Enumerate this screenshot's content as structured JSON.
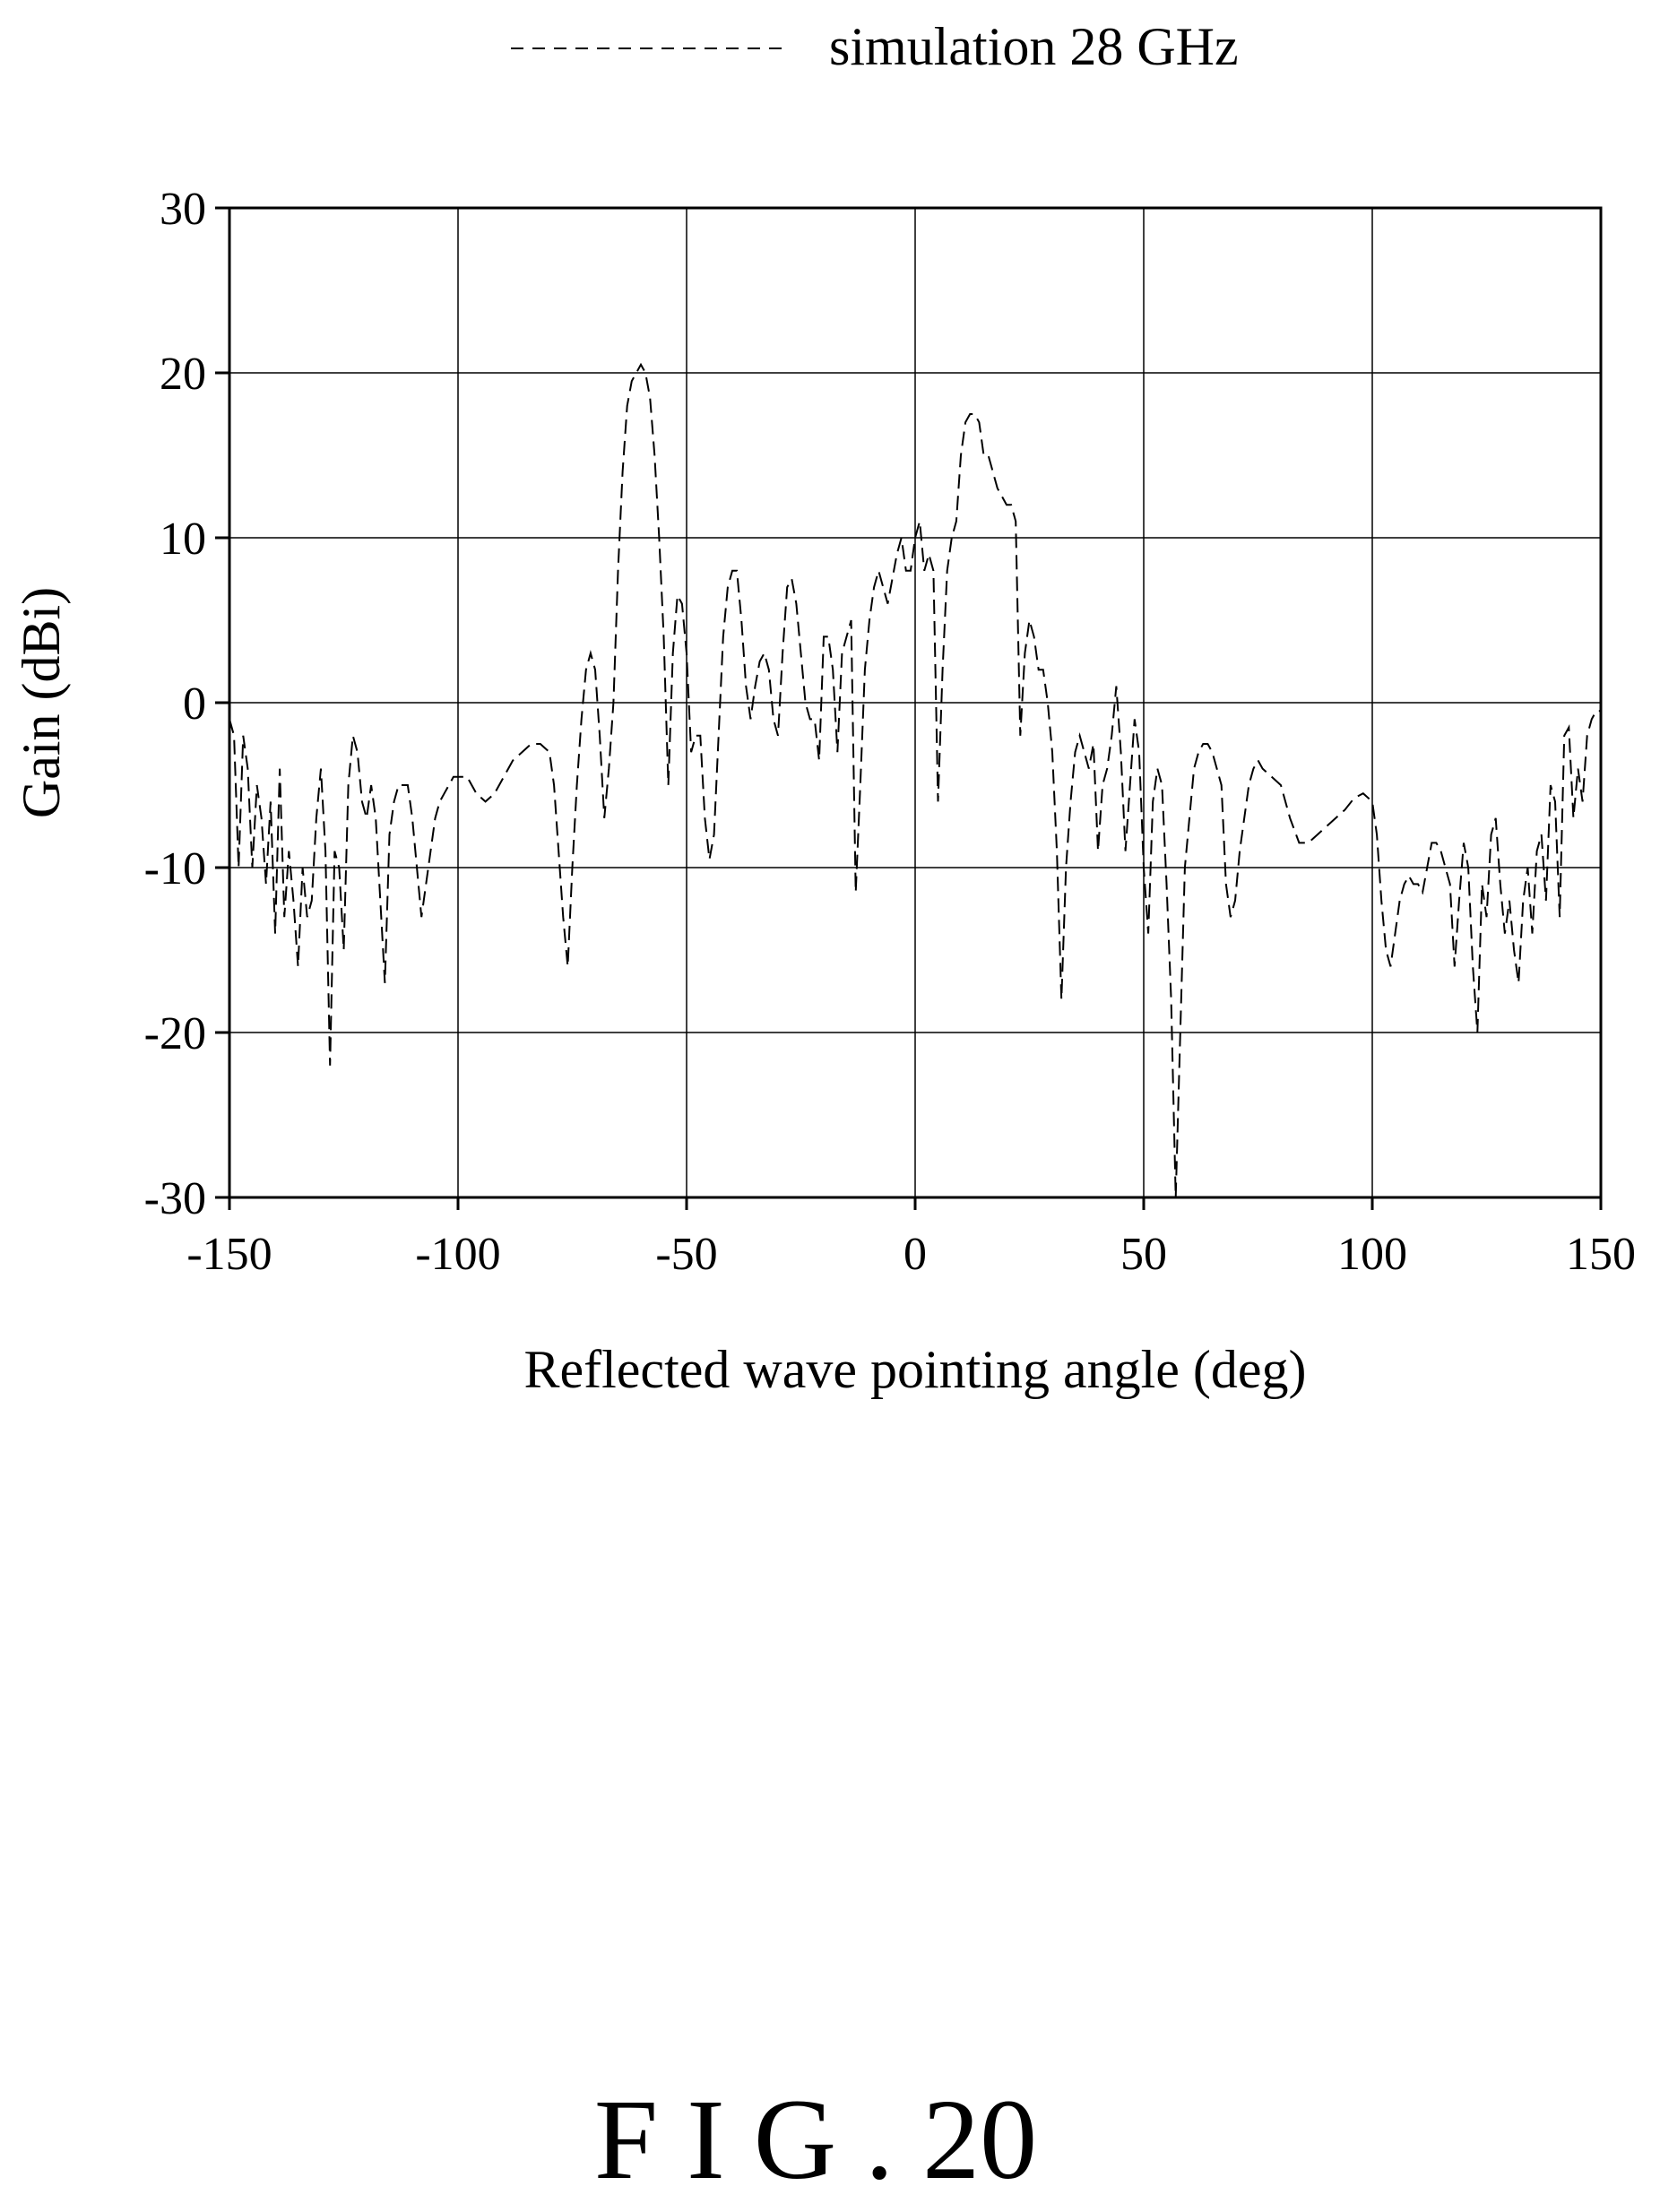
{
  "chart_data": {
    "type": "line",
    "title": "",
    "xlabel": "Reflected wave pointing angle (deg)",
    "ylabel": "Gain (dBi)",
    "xlim": [
      -150,
      150
    ],
    "ylim": [
      -30,
      30
    ],
    "xticks": [
      -150,
      -100,
      -50,
      0,
      50,
      100,
      150
    ],
    "yticks": [
      30,
      20,
      10,
      0,
      -10,
      -20,
      -30
    ],
    "grid": true,
    "legend_position": "top-center",
    "series": [
      {
        "name": "simulation 28 GHz",
        "line_style": "dashed",
        "color": "#000000",
        "points": [
          [
            -150,
            -1
          ],
          [
            -149,
            -2
          ],
          [
            -148,
            -10
          ],
          [
            -147,
            -2
          ],
          [
            -146,
            -4
          ],
          [
            -145,
            -10
          ],
          [
            -144,
            -5
          ],
          [
            -143,
            -7
          ],
          [
            -142,
            -11
          ],
          [
            -141,
            -6
          ],
          [
            -140,
            -14
          ],
          [
            -139,
            -4
          ],
          [
            -138,
            -13
          ],
          [
            -137,
            -9
          ],
          [
            -136,
            -12
          ],
          [
            -135,
            -16
          ],
          [
            -134,
            -10
          ],
          [
            -133,
            -13
          ],
          [
            -132,
            -12
          ],
          [
            -131,
            -7
          ],
          [
            -130,
            -4
          ],
          [
            -129,
            -9
          ],
          [
            -128,
            -22
          ],
          [
            -127,
            -9
          ],
          [
            -126,
            -10
          ],
          [
            -125,
            -15
          ],
          [
            -124,
            -5
          ],
          [
            -123,
            -2
          ],
          [
            -122,
            -3
          ],
          [
            -121,
            -6
          ],
          [
            -120,
            -7
          ],
          [
            -119,
            -5
          ],
          [
            -118,
            -7
          ],
          [
            -117,
            -12
          ],
          [
            -116,
            -17
          ],
          [
            -115,
            -8
          ],
          [
            -114,
            -6
          ],
          [
            -113,
            -5
          ],
          [
            -112,
            -5
          ],
          [
            -111,
            -5
          ],
          [
            -110,
            -7
          ],
          [
            -109,
            -10
          ],
          [
            -108,
            -13
          ],
          [
            -107,
            -11
          ],
          [
            -106,
            -9
          ],
          [
            -105,
            -7
          ],
          [
            -104,
            -6
          ],
          [
            -103,
            -5.5
          ],
          [
            -102,
            -5
          ],
          [
            -101,
            -4.5
          ],
          [
            -100,
            -4.5
          ],
          [
            -98,
            -4.5
          ],
          [
            -96,
            -5.5
          ],
          [
            -94,
            -6
          ],
          [
            -92,
            -5.5
          ],
          [
            -90,
            -4.5
          ],
          [
            -88,
            -3.5
          ],
          [
            -86,
            -3
          ],
          [
            -84,
            -2.5
          ],
          [
            -82,
            -2.5
          ],
          [
            -80,
            -3
          ],
          [
            -79,
            -5
          ],
          [
            -78,
            -9
          ],
          [
            -77,
            -13
          ],
          [
            -76,
            -16
          ],
          [
            -75,
            -10
          ],
          [
            -74,
            -5
          ],
          [
            -73,
            -1
          ],
          [
            -72,
            2
          ],
          [
            -71,
            3
          ],
          [
            -70,
            2
          ],
          [
            -69,
            -2
          ],
          [
            -68,
            -7
          ],
          [
            -67,
            -4
          ],
          [
            -66,
            0
          ],
          [
            -65,
            8
          ],
          [
            -64,
            14
          ],
          [
            -63,
            18
          ],
          [
            -62,
            19.5
          ],
          [
            -61,
            20
          ],
          [
            -60,
            20.5
          ],
          [
            -59,
            20
          ],
          [
            -58,
            18.5
          ],
          [
            -57,
            15
          ],
          [
            -56,
            10
          ],
          [
            -55,
            4
          ],
          [
            -54,
            -5
          ],
          [
            -53,
            3
          ],
          [
            -52,
            6.5
          ],
          [
            -51,
            6
          ],
          [
            -50,
            3
          ],
          [
            -49,
            -3
          ],
          [
            -48,
            -2
          ],
          [
            -47,
            -2
          ],
          [
            -46,
            -7
          ],
          [
            -45,
            -9.5
          ],
          [
            -44,
            -8
          ],
          [
            -43,
            -2
          ],
          [
            -42,
            4
          ],
          [
            -41,
            7
          ],
          [
            -40,
            8
          ],
          [
            -39,
            8
          ],
          [
            -38,
            5
          ],
          [
            -37,
            1
          ],
          [
            -36,
            -1
          ],
          [
            -35,
            1
          ],
          [
            -34,
            2.5
          ],
          [
            -33,
            3
          ],
          [
            -32,
            2
          ],
          [
            -31,
            -1
          ],
          [
            -30,
            -2
          ],
          [
            -29,
            3
          ],
          [
            -28,
            7
          ],
          [
            -27,
            7.5
          ],
          [
            -26,
            6
          ],
          [
            -25,
            3
          ],
          [
            -24,
            0
          ],
          [
            -23,
            -1
          ],
          [
            -22,
            -1
          ],
          [
            -21,
            -3.5
          ],
          [
            -20,
            4
          ],
          [
            -19,
            4
          ],
          [
            -18,
            2
          ],
          [
            -17,
            -3
          ],
          [
            -16,
            3
          ],
          [
            -15,
            4
          ],
          [
            -14,
            5
          ],
          [
            -13,
            -11.5
          ],
          [
            -12,
            -5
          ],
          [
            -11,
            2
          ],
          [
            -10,
            5
          ],
          [
            -9,
            7
          ],
          [
            -8,
            8
          ],
          [
            -7,
            7
          ],
          [
            -6,
            6
          ],
          [
            -5,
            7.5
          ],
          [
            -4,
            9
          ],
          [
            -3,
            10
          ],
          [
            -2,
            8
          ],
          [
            -1,
            8
          ],
          [
            0,
            10
          ],
          [
            1,
            11
          ],
          [
            2,
            8
          ],
          [
            3,
            9
          ],
          [
            4,
            8
          ],
          [
            5,
            -6
          ],
          [
            6,
            2
          ],
          [
            7,
            8
          ],
          [
            8,
            10
          ],
          [
            9,
            11
          ],
          [
            10,
            15
          ],
          [
            11,
            17
          ],
          [
            12,
            17.5
          ],
          [
            13,
            17.5
          ],
          [
            14,
            17
          ],
          [
            15,
            15
          ],
          [
            16,
            15
          ],
          [
            17,
            14
          ],
          [
            18,
            13
          ],
          [
            19,
            12.5
          ],
          [
            20,
            12
          ],
          [
            21,
            12
          ],
          [
            22,
            11
          ],
          [
            23,
            -2
          ],
          [
            24,
            3
          ],
          [
            25,
            5
          ],
          [
            26,
            4
          ],
          [
            27,
            2
          ],
          [
            28,
            2
          ],
          [
            29,
            0
          ],
          [
            30,
            -3
          ],
          [
            31,
            -9
          ],
          [
            32,
            -18
          ],
          [
            33,
            -10
          ],
          [
            34,
            -6
          ],
          [
            35,
            -3
          ],
          [
            36,
            -2
          ],
          [
            37,
            -3
          ],
          [
            38,
            -4
          ],
          [
            39,
            -2.5
          ],
          [
            40,
            -9
          ],
          [
            41,
            -5
          ],
          [
            42,
            -4
          ],
          [
            43,
            -2
          ],
          [
            44,
            1
          ],
          [
            45,
            -3
          ],
          [
            46,
            -9
          ],
          [
            47,
            -5
          ],
          [
            48,
            -1
          ],
          [
            49,
            -3
          ],
          [
            50,
            -10
          ],
          [
            51,
            -14
          ],
          [
            52,
            -6
          ],
          [
            53,
            -4
          ],
          [
            54,
            -5
          ],
          [
            55,
            -11
          ],
          [
            56,
            -18
          ],
          [
            57,
            -30
          ],
          [
            58,
            -20
          ],
          [
            59,
            -10
          ],
          [
            60,
            -7
          ],
          [
            61,
            -4
          ],
          [
            62,
            -3
          ],
          [
            63,
            -2.5
          ],
          [
            64,
            -2.5
          ],
          [
            65,
            -3
          ],
          [
            66,
            -4
          ],
          [
            67,
            -5
          ],
          [
            68,
            -11
          ],
          [
            69,
            -13
          ],
          [
            70,
            -12
          ],
          [
            71,
            -9
          ],
          [
            72,
            -7
          ],
          [
            73,
            -5
          ],
          [
            74,
            -4
          ],
          [
            75,
            -3.5
          ],
          [
            76,
            -4
          ],
          [
            78,
            -4.5
          ],
          [
            80,
            -5
          ],
          [
            82,
            -7
          ],
          [
            84,
            -8.5
          ],
          [
            86,
            -8.5
          ],
          [
            88,
            -8
          ],
          [
            90,
            -7.5
          ],
          [
            92,
            -7
          ],
          [
            94,
            -6.5
          ],
          [
            96,
            -5.8
          ],
          [
            98,
            -5.5
          ],
          [
            100,
            -6
          ],
          [
            101,
            -8
          ],
          [
            102,
            -12
          ],
          [
            103,
            -15
          ],
          [
            104,
            -16
          ],
          [
            105,
            -14
          ],
          [
            106,
            -12
          ],
          [
            107,
            -11
          ],
          [
            108,
            -10.5
          ],
          [
            109,
            -11
          ],
          [
            110,
            -11
          ],
          [
            111,
            -11.5
          ],
          [
            112,
            -10
          ],
          [
            113,
            -8.5
          ],
          [
            114,
            -8.5
          ],
          [
            115,
            -9
          ],
          [
            116,
            -10
          ],
          [
            117,
            -11
          ],
          [
            118,
            -16
          ],
          [
            119,
            -12
          ],
          [
            120,
            -8.5
          ],
          [
            121,
            -10
          ],
          [
            122,
            -16
          ],
          [
            123,
            -20
          ],
          [
            124,
            -11
          ],
          [
            125,
            -13
          ],
          [
            126,
            -8
          ],
          [
            127,
            -7
          ],
          [
            128,
            -11
          ],
          [
            129,
            -14
          ],
          [
            130,
            -12
          ],
          [
            131,
            -15
          ],
          [
            132,
            -17
          ],
          [
            133,
            -12
          ],
          [
            134,
            -10
          ],
          [
            135,
            -14
          ],
          [
            136,
            -9
          ],
          [
            137,
            -8
          ],
          [
            138,
            -12
          ],
          [
            139,
            -5
          ],
          [
            140,
            -6
          ],
          [
            141,
            -13
          ],
          [
            142,
            -2
          ],
          [
            143,
            -1.5
          ],
          [
            144,
            -7
          ],
          [
            145,
            -4
          ],
          [
            146,
            -6
          ],
          [
            147,
            -2
          ],
          [
            148,
            -1
          ],
          [
            149,
            -0.5
          ],
          [
            150,
            -0.5
          ]
        ]
      }
    ]
  },
  "figure_caption": "F I G . 20"
}
